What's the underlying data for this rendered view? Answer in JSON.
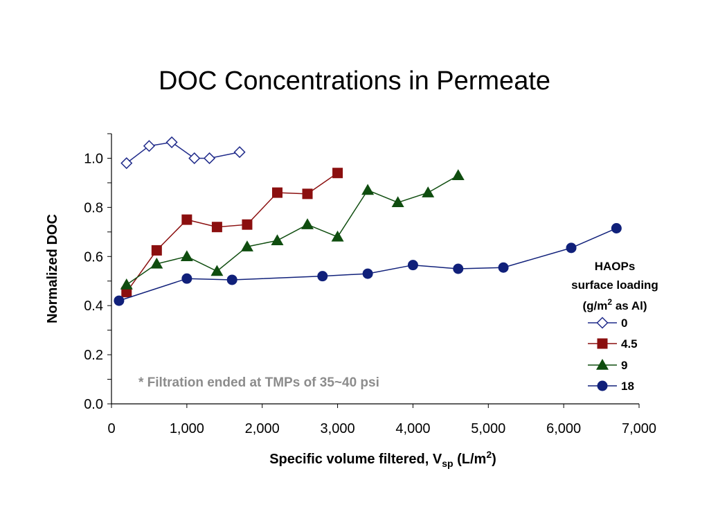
{
  "chart_data": {
    "type": "line",
    "title": "DOC Concentrations in Permeate",
    "xlabel": {
      "main": "Specific volume filtered, V",
      "sub": "sp",
      "unit_start": " (L/m",
      "unit_sup": "2",
      "unit_end": ")"
    },
    "ylabel": "Normalized DOC",
    "xlim": [
      0,
      7000
    ],
    "ylim": [
      0,
      1.1
    ],
    "x_ticks": [
      0,
      1000,
      2000,
      3000,
      4000,
      5000,
      6000,
      7000
    ],
    "x_tick_labels": [
      "0",
      "1,000",
      "2,000",
      "3,000",
      "4,000",
      "5,000",
      "6,000",
      "7,000"
    ],
    "y_ticks": [
      0,
      0.2,
      0.4,
      0.6,
      0.8,
      1.0
    ],
    "y_tick_labels": [
      "0.0",
      "0.2",
      "0.4",
      "0.6",
      "0.8",
      "1.0"
    ],
    "grid": false,
    "legend": {
      "placement": "right",
      "title_lines": [
        "HAOPs",
        "surface loading"
      ],
      "title_unit": {
        "start": "(g/m",
        "sup": "2",
        "end": " as Al)"
      }
    },
    "annotation": "* Filtration ended at TMPs of 35~40 psi",
    "series": [
      {
        "name": "0",
        "color": "#1f2a8a",
        "marker": "diamond-open",
        "x": [
          200,
          500,
          800,
          1100,
          1300,
          1700
        ],
        "y": [
          0.98,
          1.05,
          1.065,
          1.0,
          1.0,
          1.025
        ]
      },
      {
        "name": "4.5",
        "color": "#8b0f0f",
        "marker": "square",
        "x": [
          200,
          600,
          1000,
          1400,
          1800,
          2200,
          2600,
          3000
        ],
        "y": [
          0.455,
          0.625,
          0.75,
          0.72,
          0.73,
          0.86,
          0.855,
          0.94
        ]
      },
      {
        "name": "9",
        "color": "#0f4d0f",
        "marker": "triangle",
        "x": [
          200,
          600,
          1000,
          1400,
          1800,
          2200,
          2600,
          3000,
          3400,
          3800,
          4200,
          4600
        ],
        "y": [
          0.485,
          0.57,
          0.6,
          0.54,
          0.64,
          0.665,
          0.73,
          0.68,
          0.87,
          0.82,
          0.86,
          0.93
        ]
      },
      {
        "name": "18",
        "color": "#10207a",
        "marker": "circle",
        "x": [
          100,
          1000,
          1600,
          2800,
          3400,
          4000,
          4600,
          5200,
          6100,
          6700
        ],
        "y": [
          0.42,
          0.51,
          0.505,
          0.52,
          0.53,
          0.565,
          0.55,
          0.555,
          0.635,
          0.715
        ]
      }
    ]
  }
}
